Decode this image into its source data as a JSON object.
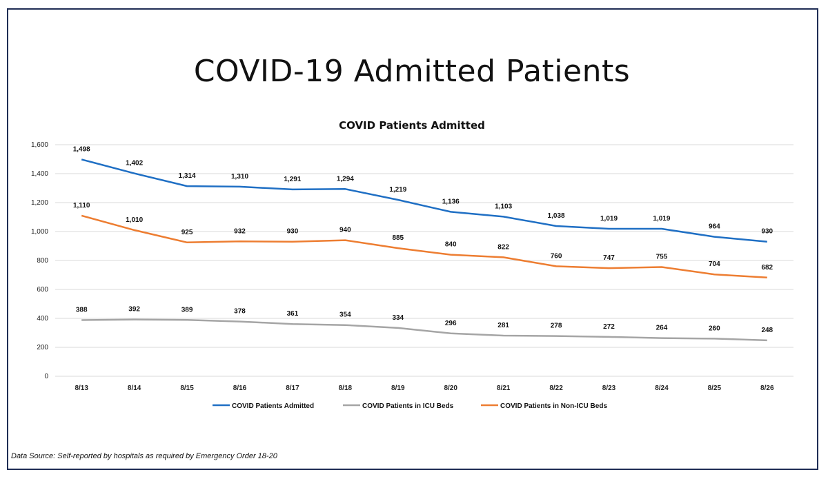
{
  "page_title": "COVID-19 Admitted Patients",
  "footnote": "Data Source: Self-reported by hospitals as required by Emergency Order 18-20",
  "chart_data": {
    "type": "line",
    "title": "COVID Patients Admitted",
    "xlabel": "",
    "ylabel": "",
    "ylim": [
      0,
      1600
    ],
    "yticks": [
      0,
      200,
      400,
      600,
      800,
      1000,
      1200,
      1400,
      1600
    ],
    "grid": true,
    "legend": "bottom",
    "categories": [
      "8/13",
      "8/14",
      "8/15",
      "8/16",
      "8/17",
      "8/18",
      "8/19",
      "8/20",
      "8/21",
      "8/22",
      "8/23",
      "8/24",
      "8/25",
      "8/26"
    ],
    "series": [
      {
        "name": "COVID Patients Admitted",
        "color": "#1f6fc4",
        "values": [
          1498,
          1402,
          1314,
          1310,
          1291,
          1294,
          1219,
          1136,
          1103,
          1038,
          1019,
          1019,
          964,
          930
        ],
        "labels": [
          "1,498",
          "1,402",
          "1,314",
          "1,310",
          "1,291",
          "1,294",
          "1,219",
          "1,136",
          "1,103",
          "1,038",
          "1,019",
          "1,019",
          "964",
          "930"
        ]
      },
      {
        "name": "COVID Patients in ICU Beds",
        "color": "#a5a5a5",
        "values": [
          388,
          392,
          389,
          378,
          361,
          354,
          334,
          296,
          281,
          278,
          272,
          264,
          260,
          248
        ],
        "labels": [
          "388",
          "392",
          "389",
          "378",
          "361",
          "354",
          "334",
          "296",
          "281",
          "278",
          "272",
          "264",
          "260",
          "248"
        ]
      },
      {
        "name": "COVID Patients in Non-ICU Beds",
        "color": "#ed7d31",
        "values": [
          1110,
          1010,
          925,
          932,
          930,
          940,
          885,
          840,
          822,
          760,
          747,
          755,
          704,
          682
        ],
        "labels": [
          "1,110",
          "1,010",
          "925",
          "932",
          "930",
          "940",
          "885",
          "840",
          "822",
          "760",
          "747",
          "755",
          "704",
          "682"
        ]
      }
    ],
    "ytick_labels": [
      "0",
      "200",
      "400",
      "600",
      "800",
      "1,000",
      "1,200",
      "1,400",
      "1,600"
    ]
  }
}
